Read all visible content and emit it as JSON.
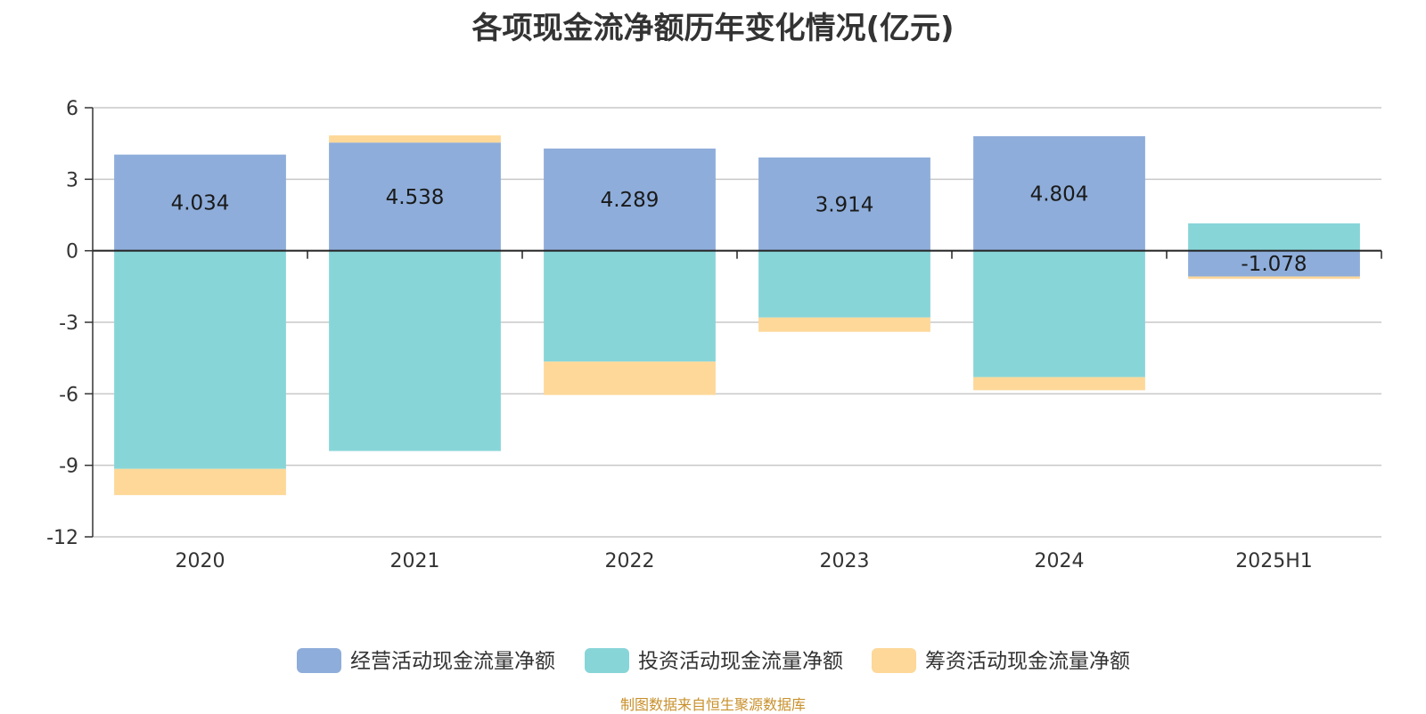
{
  "chart_data": {
    "type": "bar",
    "stacked": true,
    "title": "各项现金流净额历年变化情况(亿元)",
    "categories": [
      "2020",
      "2021",
      "2022",
      "2023",
      "2024",
      "2025H1"
    ],
    "series": [
      {
        "name": "经营活动现金流量净额",
        "color": "#8eadda",
        "values": [
          4.034,
          4.538,
          4.289,
          3.914,
          4.804,
          -1.078
        ]
      },
      {
        "name": "投资活动现金流量净额",
        "color": "#88d5d8",
        "values": [
          -9.15,
          -8.4,
          -4.65,
          -2.8,
          -5.3,
          1.15
        ]
      },
      {
        "name": "筹资活动现金流量净额",
        "color": "#fdd899",
        "values": [
          -1.1,
          0.3,
          -1.4,
          -0.6,
          -0.55,
          -0.1
        ]
      }
    ],
    "data_labels": [
      "4.034",
      "4.538",
      "4.289",
      "3.914",
      "4.804",
      "-1.078"
    ],
    "ylim": [
      -12,
      6
    ],
    "yticks": [
      6,
      3,
      0,
      -3,
      -6,
      -9,
      -12
    ],
    "grid": true,
    "legend_position": "bottom-center",
    "source": "制图数据来自恒生聚源数据库"
  }
}
